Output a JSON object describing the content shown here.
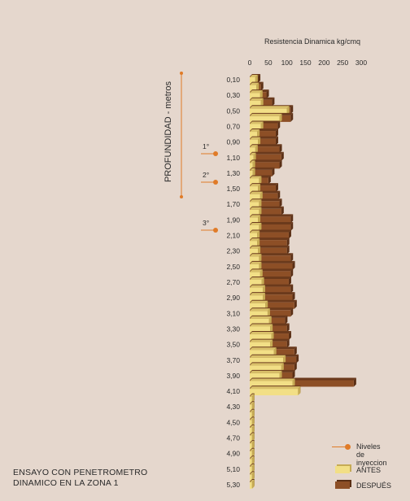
{
  "chart_data": {
    "type": "bar",
    "orientation": "horizontal",
    "title": "Resistencia Dinamica kg/cmq",
    "ylabel": "PROFUNDIDAD - metros",
    "x_ticks": [
      0,
      50,
      100,
      150,
      200,
      250,
      300
    ],
    "xlim": [
      0,
      300
    ],
    "depth_labels": [
      "0,10",
      "0,30",
      "0,50",
      "0,70",
      "0,90",
      "1,10",
      "1,30",
      "1,50",
      "1,70",
      "1,90",
      "2,10",
      "2,30",
      "2,50",
      "2,70",
      "2,90",
      "3,10",
      "3,30",
      "3,50",
      "3,70",
      "3,90",
      "4,10",
      "4,30",
      "4,50",
      "4,70",
      "4,90",
      "5,10",
      "5,30"
    ],
    "depths": [
      0.1,
      0.2,
      0.3,
      0.4,
      0.5,
      0.6,
      0.7,
      0.8,
      0.9,
      1.0,
      1.1,
      1.2,
      1.3,
      1.4,
      1.5,
      1.6,
      1.7,
      1.8,
      1.9,
      2.0,
      2.1,
      2.2,
      2.3,
      2.4,
      2.5,
      2.6,
      2.7,
      2.8,
      2.9,
      3.0,
      3.1,
      3.2,
      3.3,
      3.4,
      3.5,
      3.6,
      3.7,
      3.8,
      3.9,
      4.0,
      4.1,
      4.2,
      4.3,
      4.4,
      4.5,
      4.6,
      4.7,
      4.8,
      4.9,
      5.0,
      5.1,
      5.2,
      5.3
    ],
    "series": [
      {
        "name": "ANTES",
        "color": "#f2df86",
        "values": [
          15,
          18,
          28,
          30,
          100,
          80,
          30,
          20,
          22,
          15,
          10,
          8,
          8,
          25,
          22,
          28,
          25,
          25,
          22,
          25,
          20,
          20,
          22,
          25,
          25,
          28,
          32,
          35,
          35,
          42,
          48,
          52,
          55,
          58,
          55,
          65,
          90,
          85,
          80,
          115,
          130,
          6,
          6,
          6,
          6,
          6,
          6,
          6,
          6,
          6,
          6,
          6,
          6
        ]
      },
      {
        "name": "DESPUÉS",
        "color": "#8d4f26",
        "values": [
          22,
          30,
          45,
          60,
          110,
          110,
          75,
          70,
          70,
          80,
          85,
          80,
          60,
          50,
          70,
          75,
          80,
          85,
          110,
          110,
          105,
          100,
          100,
          110,
          115,
          110,
          105,
          110,
          115,
          120,
          110,
          95,
          100,
          105,
          100,
          120,
          125,
          120,
          115,
          280,
          130,
          6,
          6,
          6,
          6,
          6,
          6,
          6,
          6,
          6,
          6,
          6,
          6
        ]
      }
    ],
    "injection_levels": [
      {
        "label": "1°",
        "depth": 1.0
      },
      {
        "label": "2°",
        "depth": 1.35
      },
      {
        "label": "3°",
        "depth": 2.0
      }
    ],
    "injection_range": [
      0.0,
      1.5
    ],
    "grid": false,
    "legend": "bottom-right"
  },
  "caption": "ENSAYO CON PENETROMETRO\nDINAMICO EN LA ZONA 1",
  "legend": {
    "injection_label": "Niveles de\ninyeccion",
    "antes_label": "ANTES",
    "despues_label": "DESPUÉS"
  },
  "colors": {
    "background": "#e5d7cd",
    "antes": "#f2df86",
    "despues": "#8d4f26",
    "injection": "#e07b28"
  }
}
